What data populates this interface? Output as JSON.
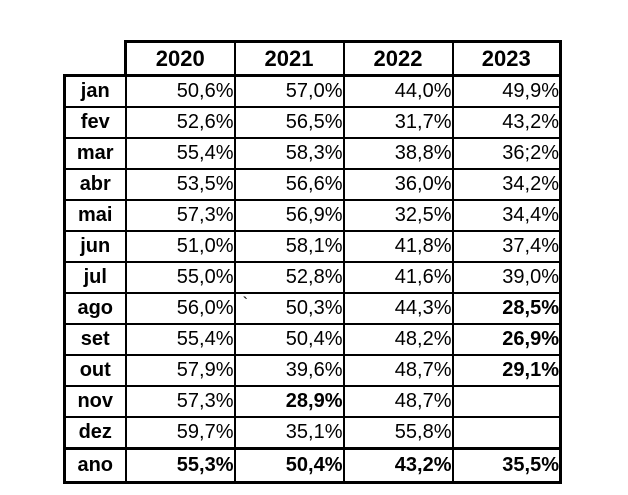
{
  "chart_data": {
    "type": "table",
    "title": "",
    "columns": [
      "2020",
      "2021",
      "2022",
      "2023"
    ],
    "categories": [
      "jan",
      "fev",
      "mar",
      "abr",
      "mai",
      "jun",
      "jul",
      "ago",
      "set",
      "out",
      "nov",
      "dez"
    ],
    "series": [
      {
        "name": "2020",
        "values": [
          50.6,
          52.6,
          55.4,
          53.5,
          57.3,
          51.0,
          55.0,
          56.0,
          55.4,
          57.9,
          57.3,
          59.7
        ],
        "total_ano": 55.3
      },
      {
        "name": "2021",
        "values": [
          57.0,
          56.5,
          58.3,
          56.6,
          56.9,
          58.1,
          52.8,
          50.3,
          50.4,
          39.6,
          28.9,
          35.1
        ],
        "total_ano": 50.4
      },
      {
        "name": "2022",
        "values": [
          44.0,
          31.7,
          38.8,
          36.0,
          32.5,
          41.8,
          41.6,
          44.3,
          48.2,
          48.7,
          48.7,
          55.8
        ],
        "total_ano": 43.2
      },
      {
        "name": "2023",
        "values": [
          49.9,
          43.2,
          36.2,
          34.2,
          34.4,
          37.4,
          39.0,
          28.5,
          26.9,
          29.1,
          null,
          null
        ],
        "total_ano": 35.5
      }
    ],
    "unit": "%",
    "highlight_color": "#FFFF00",
    "highlighted_points": [
      {
        "series": "2023",
        "category": "ago"
      },
      {
        "series": "2023",
        "category": "set"
      },
      {
        "series": "2023",
        "category": "out"
      },
      {
        "series": "2021",
        "category": "nov"
      }
    ]
  },
  "table": {
    "columns": [
      "2020",
      "2021",
      "2022",
      "2023"
    ],
    "rows": [
      {
        "label": "jan",
        "values": [
          "50,6%",
          "57,0%",
          "44,0%",
          "49,9%"
        ]
      },
      {
        "label": "fev",
        "values": [
          "52,6%",
          "56,5%",
          "31,7%",
          "43,2%"
        ]
      },
      {
        "label": "mar",
        "values": [
          "55,4%",
          "58,3%",
          "38,8%",
          "36;2%"
        ]
      },
      {
        "label": "abr",
        "values": [
          "53,5%",
          "56,6%",
          "36,0%",
          "34,2%"
        ]
      },
      {
        "label": "mai",
        "values": [
          "57,3%",
          "56,9%",
          "32,5%",
          "34,4%"
        ]
      },
      {
        "label": "jun",
        "values": [
          "51,0%",
          "58,1%",
          "41,8%",
          "37,4%"
        ]
      },
      {
        "label": "jul",
        "values": [
          "55,0%",
          "52,8%",
          "41,6%",
          "39,0%"
        ]
      },
      {
        "label": "ago",
        "values": [
          "56,0%",
          "50,3%",
          "44,3%",
          "28,5%"
        ]
      },
      {
        "label": "set",
        "values": [
          "55,4%",
          "50,4%",
          "48,2%",
          "26,9%"
        ]
      },
      {
        "label": "out",
        "values": [
          "57,9%",
          "39,6%",
          "48,7%",
          "29,1%"
        ]
      },
      {
        "label": "nov",
        "values": [
          "57,3%",
          "28,9%",
          "48,7%",
          ""
        ]
      },
      {
        "label": "dez",
        "values": [
          "59,7%",
          "35,1%",
          "55,8%",
          ""
        ]
      },
      {
        "label": "ano",
        "values": [
          "55,3%",
          "50,4%",
          "43,2%",
          "35,5%"
        ]
      }
    ],
    "total_row_label": "ano",
    "highlighted_cells": [
      {
        "row": 7,
        "col": 3
      },
      {
        "row": 8,
        "col": 3
      },
      {
        "row": 9,
        "col": 3
      },
      {
        "row": 10,
        "col": 1
      }
    ],
    "highlight_color": "#FFFF00",
    "stray_mark": {
      "row": 7,
      "col": 1,
      "char": "`"
    }
  }
}
